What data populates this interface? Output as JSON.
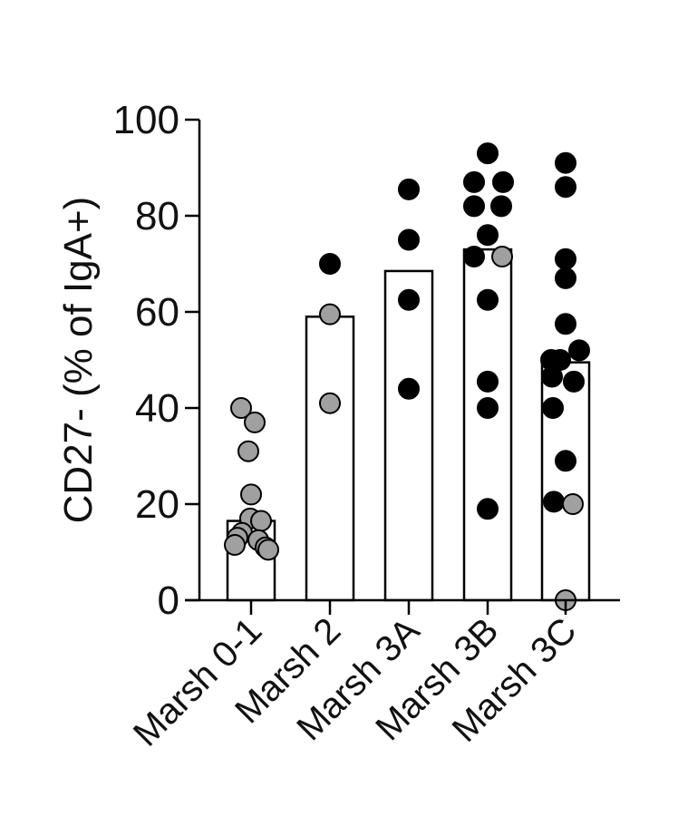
{
  "chart_data": {
    "type": "bar",
    "ylabel": "CD27- (% of IgA+)",
    "xlabel": "",
    "ylim": [
      0,
      100
    ],
    "yticks": [
      "0",
      "20",
      "40",
      "60",
      "80",
      "100"
    ],
    "categories": [
      "Marsh 0-1",
      "Marsh 2",
      "Marsh 3A",
      "Marsh 3B",
      "Marsh 3C"
    ],
    "values": [
      16.5,
      59,
      68.5,
      73,
      49.5
    ],
    "points": [
      [
        {
          "v": 40,
          "c": "grey"
        },
        {
          "v": 37,
          "c": "grey"
        },
        {
          "v": 31,
          "c": "grey"
        },
        {
          "v": 22,
          "c": "grey"
        },
        {
          "v": 17,
          "c": "grey"
        },
        {
          "v": 16.5,
          "c": "grey"
        },
        {
          "v": 14,
          "c": "grey"
        },
        {
          "v": 13,
          "c": "grey"
        },
        {
          "v": 12.5,
          "c": "grey"
        },
        {
          "v": 11.5,
          "c": "grey"
        },
        {
          "v": 11,
          "c": "grey"
        },
        {
          "v": 10.5,
          "c": "grey"
        }
      ],
      [
        {
          "v": 70,
          "c": "black"
        },
        {
          "v": 59.5,
          "c": "grey"
        },
        {
          "v": 41,
          "c": "grey"
        }
      ],
      [
        {
          "v": 85.5,
          "c": "black"
        },
        {
          "v": 75,
          "c": "black"
        },
        {
          "v": 62.5,
          "c": "black"
        },
        {
          "v": 44,
          "c": "black"
        }
      ],
      [
        {
          "v": 93,
          "c": "black"
        },
        {
          "v": 87,
          "c": "black"
        },
        {
          "v": 87,
          "c": "black"
        },
        {
          "v": 82,
          "c": "black"
        },
        {
          "v": 82,
          "c": "black"
        },
        {
          "v": 76,
          "c": "black"
        },
        {
          "v": 71.5,
          "c": "black"
        },
        {
          "v": 71.5,
          "c": "grey"
        },
        {
          "v": 62.5,
          "c": "black"
        },
        {
          "v": 45.5,
          "c": "black"
        },
        {
          "v": 40,
          "c": "black"
        },
        {
          "v": 19,
          "c": "black"
        }
      ],
      [
        {
          "v": 91,
          "c": "black"
        },
        {
          "v": 86,
          "c": "black"
        },
        {
          "v": 71,
          "c": "black"
        },
        {
          "v": 67,
          "c": "black"
        },
        {
          "v": 57.5,
          "c": "black"
        },
        {
          "v": 52,
          "c": "black"
        },
        {
          "v": 50,
          "c": "black"
        },
        {
          "v": 50,
          "c": "black"
        },
        {
          "v": 46.5,
          "c": "black"
        },
        {
          "v": 45.5,
          "c": "black"
        },
        {
          "v": 40,
          "c": "black"
        },
        {
          "v": 29,
          "c": "black"
        },
        {
          "v": 20.5,
          "c": "black"
        },
        {
          "v": 20,
          "c": "grey"
        },
        {
          "v": 0,
          "c": "grey"
        }
      ]
    ],
    "colors": {
      "grey": "#a0a0a0",
      "black": "#000000",
      "bar_fill": "#ffffff",
      "axis": "#000000"
    },
    "grid": false,
    "legend": "none"
  }
}
